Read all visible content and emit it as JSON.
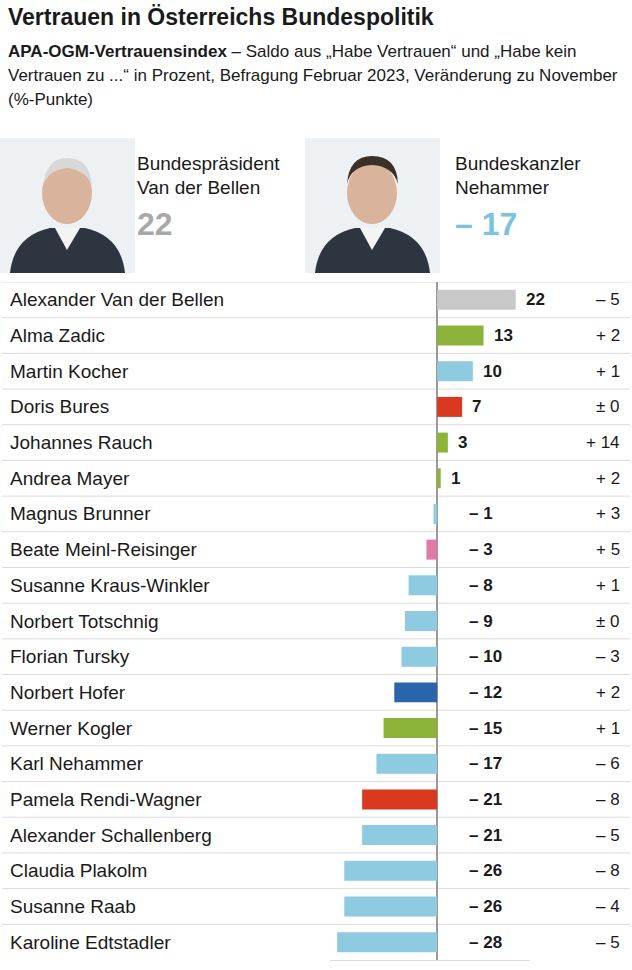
{
  "chart_data": {
    "type": "bar",
    "title": "Vertrauen in Österreichs Bundespolitik",
    "subtitle": {
      "bold": "APA-OGM-Vertrauensindex",
      "text": "– Saldo aus „Habe Vertrauen“ und „Habe kein Vertrauen zu ...“ in Prozent, Befragung Februar 2023, Veränderung zu November (%-Punkte)"
    },
    "highlights": [
      {
        "label": "Bundespräsident",
        "name": "Van der Bellen",
        "value": 22,
        "value_label": "22",
        "color": "#a9a9a9"
      },
      {
        "label": "Bundeskanzler",
        "name": "Nehammer",
        "value": -17,
        "value_label": "– 17",
        "color": "#7cc3dc"
      }
    ],
    "orientation": "horizontal",
    "categories": [
      "Alexander Van der Bellen",
      "Alma Zadic",
      "Martin Kocher",
      "Doris Bures",
      "Johannes Rauch",
      "Andrea Mayer",
      "Magnus Brunner",
      "Beate Meinl-Reisinger",
      "Susanne Kraus-Winkler",
      "Norbert Totschnig",
      "Florian Tursky",
      "Norbert Hofer",
      "Werner Kogler",
      "Karl Nehammer",
      "Pamela Rendi-Wagner",
      "Alexander Schallenberg",
      "Claudia Plakolm",
      "Susanne Raab",
      "Karoline Edtstadler"
    ],
    "values": [
      22,
      13,
      10,
      7,
      3,
      1,
      -1,
      -3,
      -8,
      -9,
      -10,
      -12,
      -15,
      -17,
      -21,
      -21,
      -26,
      -26,
      -28
    ],
    "value_labels": [
      "22",
      "13",
      "10",
      "7",
      "3",
      "1",
      "– 1",
      "– 3",
      "– 8",
      "– 9",
      "– 10",
      "– 12",
      "– 15",
      "– 17",
      "– 21",
      "– 21",
      "– 26",
      "– 26",
      "– 28"
    ],
    "colors": [
      "#c8c8c8",
      "#8db33a",
      "#8ecae0",
      "#d9391e",
      "#8db33a",
      "#8db33a",
      "#8ecae0",
      "#e07aa8",
      "#8ecae0",
      "#8ecae0",
      "#8ecae0",
      "#2a64ab",
      "#8db33a",
      "#8ecae0",
      "#d9391e",
      "#8ecae0",
      "#8ecae0",
      "#8ecae0",
      "#8ecae0"
    ],
    "changes": [
      -5,
      2,
      1,
      0,
      14,
      2,
      3,
      5,
      1,
      0,
      -3,
      2,
      1,
      -6,
      -8,
      -5,
      -8,
      -4,
      -5
    ],
    "change_labels": [
      "– 5",
      "+ 2",
      "+ 1",
      "± 0",
      "+ 14",
      "+ 2",
      "+ 3",
      "+ 5",
      "+ 1",
      "± 0",
      "– 3",
      "+ 2",
      "+ 1",
      "– 6",
      "– 8",
      "– 5",
      "– 8",
      "– 4",
      "– 5"
    ],
    "xlim": [
      -30,
      26
    ],
    "data_labels": true,
    "tick_labels": "y"
  }
}
